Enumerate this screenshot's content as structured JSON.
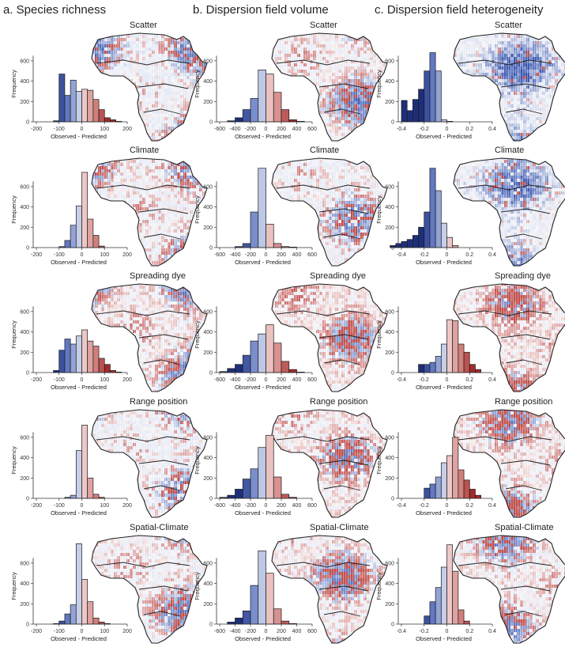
{
  "columns": [
    {
      "title": "a. Species richness",
      "xticks": [
        -200,
        -100,
        0,
        100,
        200
      ],
      "xmin": -200,
      "xmax": 200
    },
    {
      "title": "b. Dispersion field volume",
      "xticks": [
        -600,
        -400,
        -200,
        0,
        200,
        400,
        600
      ],
      "xmin": -600,
      "xmax": 600
    },
    {
      "title": "c. Dispersion field heterogeneity",
      "xticks": [
        -0.4,
        -0.2,
        0,
        0.2,
        0.4
      ],
      "xmin": -0.4,
      "xmax": 0.4
    }
  ],
  "rows": [
    "Scatter",
    "Climate",
    "Spreading dye",
    "Range position",
    "Spatial-Climate"
  ],
  "axes": {
    "xlabel": "Observed - Predicted",
    "ylabel": "Frequency",
    "yticks": [
      0,
      200,
      400,
      600
    ],
    "ylim": [
      0,
      700
    ]
  },
  "colors": {
    "neg_dark": "#1e2f7a",
    "neg_mid": "#5a72c0",
    "neg_light": "#dfe4f3",
    "pos_light": "#f3dada",
    "pos_mid": "#cf7a78",
    "pos_dark": "#a32b2b",
    "map_outline": "#222222"
  },
  "chart_data": [
    {
      "panel": "a-scatter",
      "type": "bar",
      "bin_centers": [
        -112.5,
        -87.5,
        -62.5,
        -37.5,
        -12.5,
        12.5,
        37.5,
        62.5,
        87.5,
        112.5,
        137.5,
        162.5
      ],
      "values": [
        10,
        470,
        260,
        410,
        300,
        320,
        310,
        220,
        120,
        40,
        20,
        5
      ]
    },
    {
      "panel": "a-climate",
      "type": "bar",
      "bin_centers": [
        -87.5,
        -62.5,
        -37.5,
        -12.5,
        12.5,
        37.5,
        62.5,
        87.5
      ],
      "values": [
        10,
        70,
        220,
        410,
        740,
        280,
        120,
        15
      ]
    },
    {
      "panel": "a-spreading-dye",
      "type": "bar",
      "bin_centers": [
        -112.5,
        -87.5,
        -62.5,
        -37.5,
        -12.5,
        12.5,
        37.5,
        62.5,
        87.5,
        112.5,
        137.5,
        162.5
      ],
      "values": [
        20,
        220,
        330,
        280,
        360,
        420,
        310,
        260,
        140,
        80,
        20,
        5
      ]
    },
    {
      "panel": "a-range-position",
      "type": "bar",
      "bin_centers": [
        -62.5,
        -37.5,
        -12.5,
        12.5,
        37.5,
        62.5,
        87.5
      ],
      "values": [
        10,
        30,
        470,
        720,
        200,
        40,
        10
      ]
    },
    {
      "panel": "a-spatial-climate",
      "type": "bar",
      "bin_centers": [
        -112.5,
        -87.5,
        -62.5,
        -37.5,
        -12.5,
        12.5,
        37.5,
        62.5,
        87.5,
        112.5
      ],
      "values": [
        5,
        30,
        100,
        190,
        790,
        440,
        220,
        60,
        20,
        5
      ]
    },
    {
      "panel": "b-scatter",
      "type": "bar",
      "bin_centers": [
        -450,
        -350,
        -250,
        -150,
        -50,
        50,
        150,
        250,
        350,
        450
      ],
      "values": [
        10,
        40,
        120,
        230,
        510,
        470,
        290,
        120,
        20,
        5
      ]
    },
    {
      "panel": "b-climate",
      "type": "bar",
      "bin_centers": [
        -350,
        -250,
        -150,
        -50,
        50,
        150,
        250,
        350
      ],
      "values": [
        10,
        40,
        350,
        780,
        230,
        40,
        10,
        5
      ]
    },
    {
      "panel": "b-spreading-dye",
      "type": "bar",
      "bin_centers": [
        -550,
        -450,
        -350,
        -250,
        -150,
        -50,
        50,
        150,
        250,
        350,
        450
      ],
      "values": [
        10,
        40,
        80,
        170,
        310,
        380,
        470,
        290,
        110,
        30,
        5
      ]
    },
    {
      "panel": "b-range-position",
      "type": "bar",
      "bin_centers": [
        -550,
        -450,
        -350,
        -250,
        -150,
        -50,
        50,
        150,
        250,
        350
      ],
      "values": [
        10,
        30,
        90,
        190,
        290,
        500,
        620,
        210,
        40,
        10
      ]
    },
    {
      "panel": "b-spatial-climate",
      "type": "bar",
      "bin_centers": [
        -450,
        -350,
        -250,
        -150,
        -50,
        50,
        150,
        250,
        350
      ],
      "values": [
        20,
        60,
        130,
        380,
        720,
        500,
        150,
        30,
        5
      ]
    },
    {
      "panel": "c-scatter",
      "type": "bar",
      "bin_centers": [
        -0.375,
        -0.325,
        -0.275,
        -0.225,
        -0.175,
        -0.125,
        -0.075,
        -0.025,
        0.025
      ],
      "values": [
        210,
        110,
        220,
        320,
        500,
        680,
        500,
        20,
        5
      ]
    },
    {
      "panel": "c-climate",
      "type": "bar",
      "bin_centers": [
        -0.475,
        -0.425,
        -0.375,
        -0.325,
        -0.275,
        -0.225,
        -0.175,
        -0.125,
        -0.075,
        -0.025,
        0.025,
        0.075
      ],
      "values": [
        20,
        40,
        60,
        80,
        120,
        200,
        350,
        780,
        560,
        240,
        100,
        20
      ]
    },
    {
      "panel": "c-spreading-dye",
      "type": "bar",
      "bin_centers": [
        -0.225,
        -0.175,
        -0.125,
        -0.075,
        -0.025,
        0.025,
        0.075,
        0.125,
        0.175,
        0.225,
        0.275
      ],
      "values": [
        80,
        80,
        100,
        160,
        280,
        520,
        510,
        280,
        200,
        80,
        30
      ]
    },
    {
      "panel": "c-range-position",
      "type": "bar",
      "bin_centers": [
        -0.175,
        -0.125,
        -0.075,
        -0.025,
        0.025,
        0.075,
        0.125,
        0.175,
        0.225,
        0.275
      ],
      "values": [
        100,
        140,
        210,
        350,
        420,
        600,
        280,
        180,
        90,
        30
      ]
    },
    {
      "panel": "c-spatial-climate",
      "type": "bar",
      "bin_centers": [
        -0.175,
        -0.125,
        -0.075,
        -0.025,
        0.025,
        0.075,
        0.125,
        0.175
      ],
      "values": [
        80,
        220,
        360,
        560,
        780,
        520,
        140,
        30
      ]
    }
  ]
}
